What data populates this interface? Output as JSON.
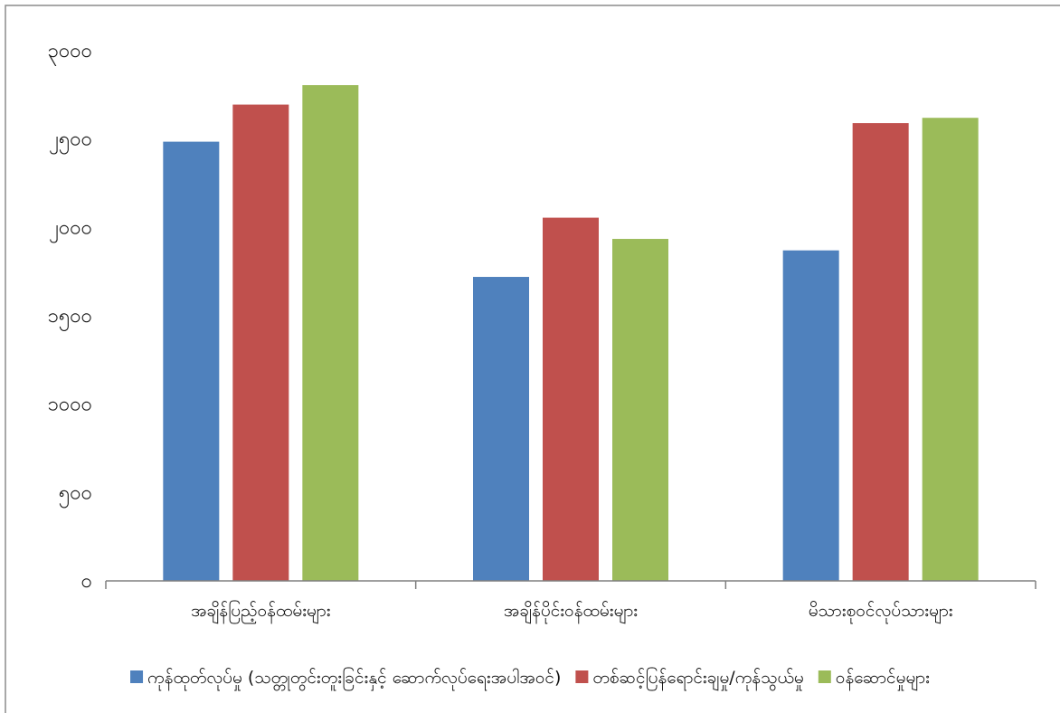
{
  "chart_data": {
    "type": "bar",
    "title": "",
    "xlabel": "",
    "ylabel": "",
    "categories": [
      "အချိန်ပြည့်ဝန်ထမ်းများ",
      "အချိန်ပိုင်းဝန်ထမ်းများ",
      "မိသားစုဝင်လုပ်သားများ"
    ],
    "series": [
      {
        "name": "ကုန်ထုတ်လုပ်မှု (သတ္တုတွင်းတူးခြင်းနှင့် ဆောက်လုပ်ရေးအပါအဝင်)",
        "color": "#4f81bd",
        "values": [
          2485,
          1720,
          1870
        ]
      },
      {
        "name": "တစ်ဆင့်ပြန်ရောင်းချမှု/ကုန်သွယ်မှု",
        "color": "#c0504d",
        "values": [
          2695,
          2055,
          2590
        ]
      },
      {
        "name": "ဝန်ဆောင်မှုများ",
        "color": "#9bbb59",
        "values": [
          2805,
          1935,
          2620
        ]
      }
    ],
    "ylim": [
      0,
      3000
    ],
    "yticks": [
      0,
      500,
      1000,
      1500,
      2000,
      2500,
      3000
    ],
    "ytick_labels": [
      "၀",
      "၅၀၀",
      "၁၀၀၀",
      "၁၅၀၀",
      "၂၀၀၀",
      "၂၅၀၀",
      "၃၀၀၀"
    ],
    "grid": false,
    "legend_position": "bottom"
  }
}
